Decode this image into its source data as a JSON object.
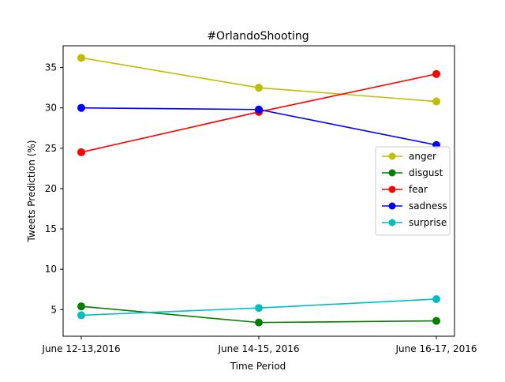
{
  "chart_data": {
    "type": "line",
    "title": "#OrlandoShooting",
    "xlabel": "Time Period",
    "ylabel": "Tweets Prediction (%)",
    "categories": [
      "June 12-13,2016",
      "June 14-15, 2016",
      "June 16-17, 2016"
    ],
    "ylim": [
      1.7,
      37.7
    ],
    "yticks": [
      5,
      10,
      15,
      20,
      25,
      30,
      35
    ],
    "grid": false,
    "legend_position": "center-right",
    "series": [
      {
        "name": "anger",
        "color": "#bfbf00",
        "values": [
          36.2,
          32.5,
          30.8
        ]
      },
      {
        "name": "disgust",
        "color": "#008000",
        "values": [
          5.4,
          3.4,
          3.6
        ]
      },
      {
        "name": "fear",
        "color": "#ff0000",
        "values": [
          24.5,
          29.5,
          34.2
        ]
      },
      {
        "name": "sadness",
        "color": "#0000ff",
        "values": [
          30.0,
          29.8,
          25.4
        ]
      },
      {
        "name": "surprise",
        "color": "#00bfbf",
        "values": [
          4.3,
          5.2,
          6.3
        ]
      }
    ]
  }
}
